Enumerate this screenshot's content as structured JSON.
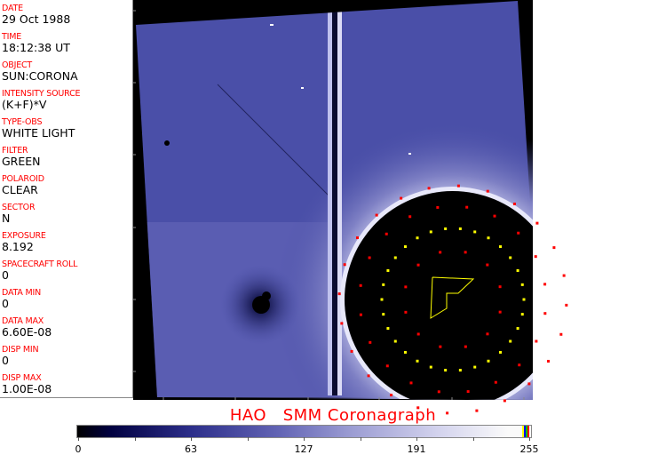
{
  "info_panel": [
    {
      "label": "DATE",
      "value": "29 Oct 1988"
    },
    {
      "label": "TIME",
      "value": "18:12:38 UT"
    },
    {
      "label": "OBJECT",
      "value": "SUN:CORONA"
    },
    {
      "label": "INTENSITY SOURCE",
      "value": "(K+F)*V"
    },
    {
      "label": "TYPE-OBS",
      "value": "WHITE LIGHT"
    },
    {
      "label": "FILTER",
      "value": "GREEN"
    },
    {
      "label": "POLAROID",
      "value": "CLEAR"
    },
    {
      "label": "SECTOR",
      "value": "N"
    },
    {
      "label": "EXPOSURE",
      "value": "8.192"
    },
    {
      "label": "SPACECRAFT ROLL",
      "value": "0"
    },
    {
      "label": "DATA MIN",
      "value": "0"
    },
    {
      "label": "DATA MAX",
      "value": "6.60E-08"
    },
    {
      "label": "DISP MIN",
      "value": "0"
    },
    {
      "label": "DISP MAX",
      "value": "1.00E-08"
    }
  ],
  "title": "HAO   SMM Coronagraph",
  "colorbar": {
    "ticks": [
      "0",
      "63",
      "127",
      "191",
      "255"
    ],
    "end_colors": [
      "#ffff00",
      "#0000ff",
      "#00c000",
      "#ff0000"
    ]
  },
  "colors": {
    "label": "#ff0000",
    "marker_yellow": "#ffff00",
    "marker_red": "#ff0000",
    "field": "#4a4fa8"
  }
}
